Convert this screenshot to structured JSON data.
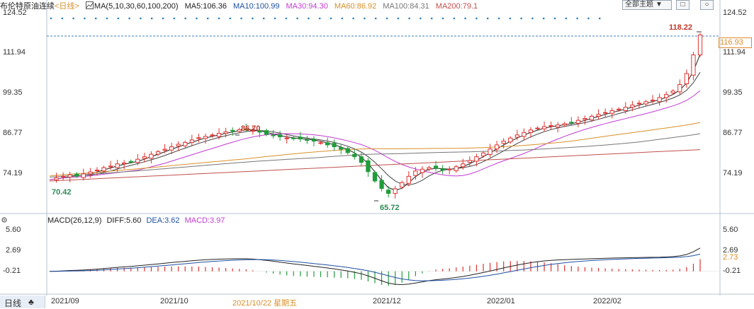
{
  "legend": {
    "title": "布伦特原油连续",
    "period": "<日线>",
    "ma_label": "MA(5,10,30,60,100,200)",
    "ma5": "MA5:106.36",
    "ma10": "MA10:100.99",
    "ma30": "MA30:94.30",
    "ma60": "MA60:86.92",
    "ma100": "MA100:84.31",
    "ma200": "MA200:79.1"
  },
  "controls": {
    "theme_button": "全部主题",
    "theme_arrow": "▼",
    "btn1": "□",
    "btn2": "○"
  },
  "price_axis": {
    "left": [
      "124.52",
      "111.94",
      "99.35",
      "86.77",
      "74.19"
    ],
    "right": [
      "124.52",
      "111.94",
      "99.35",
      "86.77",
      "74.19"
    ]
  },
  "price_tag": "116.93",
  "annotations": {
    "high": "118.22",
    "local_high": "86.70",
    "start_low": "70.42",
    "low": "65.72"
  },
  "macd_legend": {
    "label": "MACD(26,12,9)",
    "diff": "DIFF:5.60",
    "dea": "DEA:3.62",
    "macd": "MACD:3.97"
  },
  "macd_axis": {
    "left": [
      "5.60",
      "2.69",
      "-0.21"
    ],
    "right": [
      "5.60",
      "2.69",
      "2.73",
      "-0.21"
    ]
  },
  "timeline": {
    "tab": "日线",
    "tab_icon": "♣",
    "dates": [
      "2021/09",
      "2021/10",
      "2021/10/22 星期五",
      "2021/12",
      "2022/01",
      "2022/02"
    ]
  },
  "colors": {
    "up": "#e0312f",
    "down": "#1f9d3a",
    "ma5": "#222222",
    "ma10": "#444444",
    "ma30": "#c23bd1",
    "ma60": "#d9902a",
    "ma100": "#777777",
    "ma200": "#c0504d",
    "axis_tag": "#e08a2a"
  },
  "chart_data": {
    "type": "candlestick",
    "ylim": [
      60,
      124.52
    ],
    "close_series": [
      70.4,
      71.0,
      71.5,
      72.0,
      71.6,
      72.3,
      72.9,
      73.5,
      74.3,
      74.8,
      75.5,
      75.8,
      76.2,
      77.0,
      77.8,
      78.6,
      79.4,
      80.2,
      81.0,
      81.8,
      82.4,
      83.2,
      83.9,
      84.3,
      84.8,
      85.3,
      85.8,
      86.2,
      86.5,
      86.7,
      86.2,
      85.7,
      85.0,
      84.6,
      84.2,
      83.8,
      83.6,
      83.5,
      83.2,
      82.8,
      82.3,
      81.6,
      81.0,
      80.2,
      79.1,
      77.8,
      76.0,
      73.0,
      70.0,
      67.6,
      66.0,
      67.5,
      69.5,
      71.5,
      73.2,
      73.8,
      74.3,
      74.1,
      73.5,
      73.8,
      74.6,
      75.5,
      76.6,
      77.8,
      79.0,
      80.3,
      81.6,
      82.8,
      83.8,
      84.8,
      85.6,
      86.4,
      87.0,
      87.5,
      87.8,
      88.0,
      88.4,
      88.8,
      89.5,
      90.1,
      90.8,
      91.4,
      92.0,
      92.6,
      93.1,
      93.7,
      94.4,
      95.0,
      95.5,
      96.0,
      96.8,
      97.8,
      98.9,
      101.0,
      104.5,
      110.5,
      116.93
    ],
    "ma_lines": [
      "MA5",
      "MA10",
      "MA30",
      "MA60",
      "MA100",
      "MA200"
    ],
    "macd": {
      "diff": 5.6,
      "dea": 3.62,
      "macd": 3.97
    }
  }
}
